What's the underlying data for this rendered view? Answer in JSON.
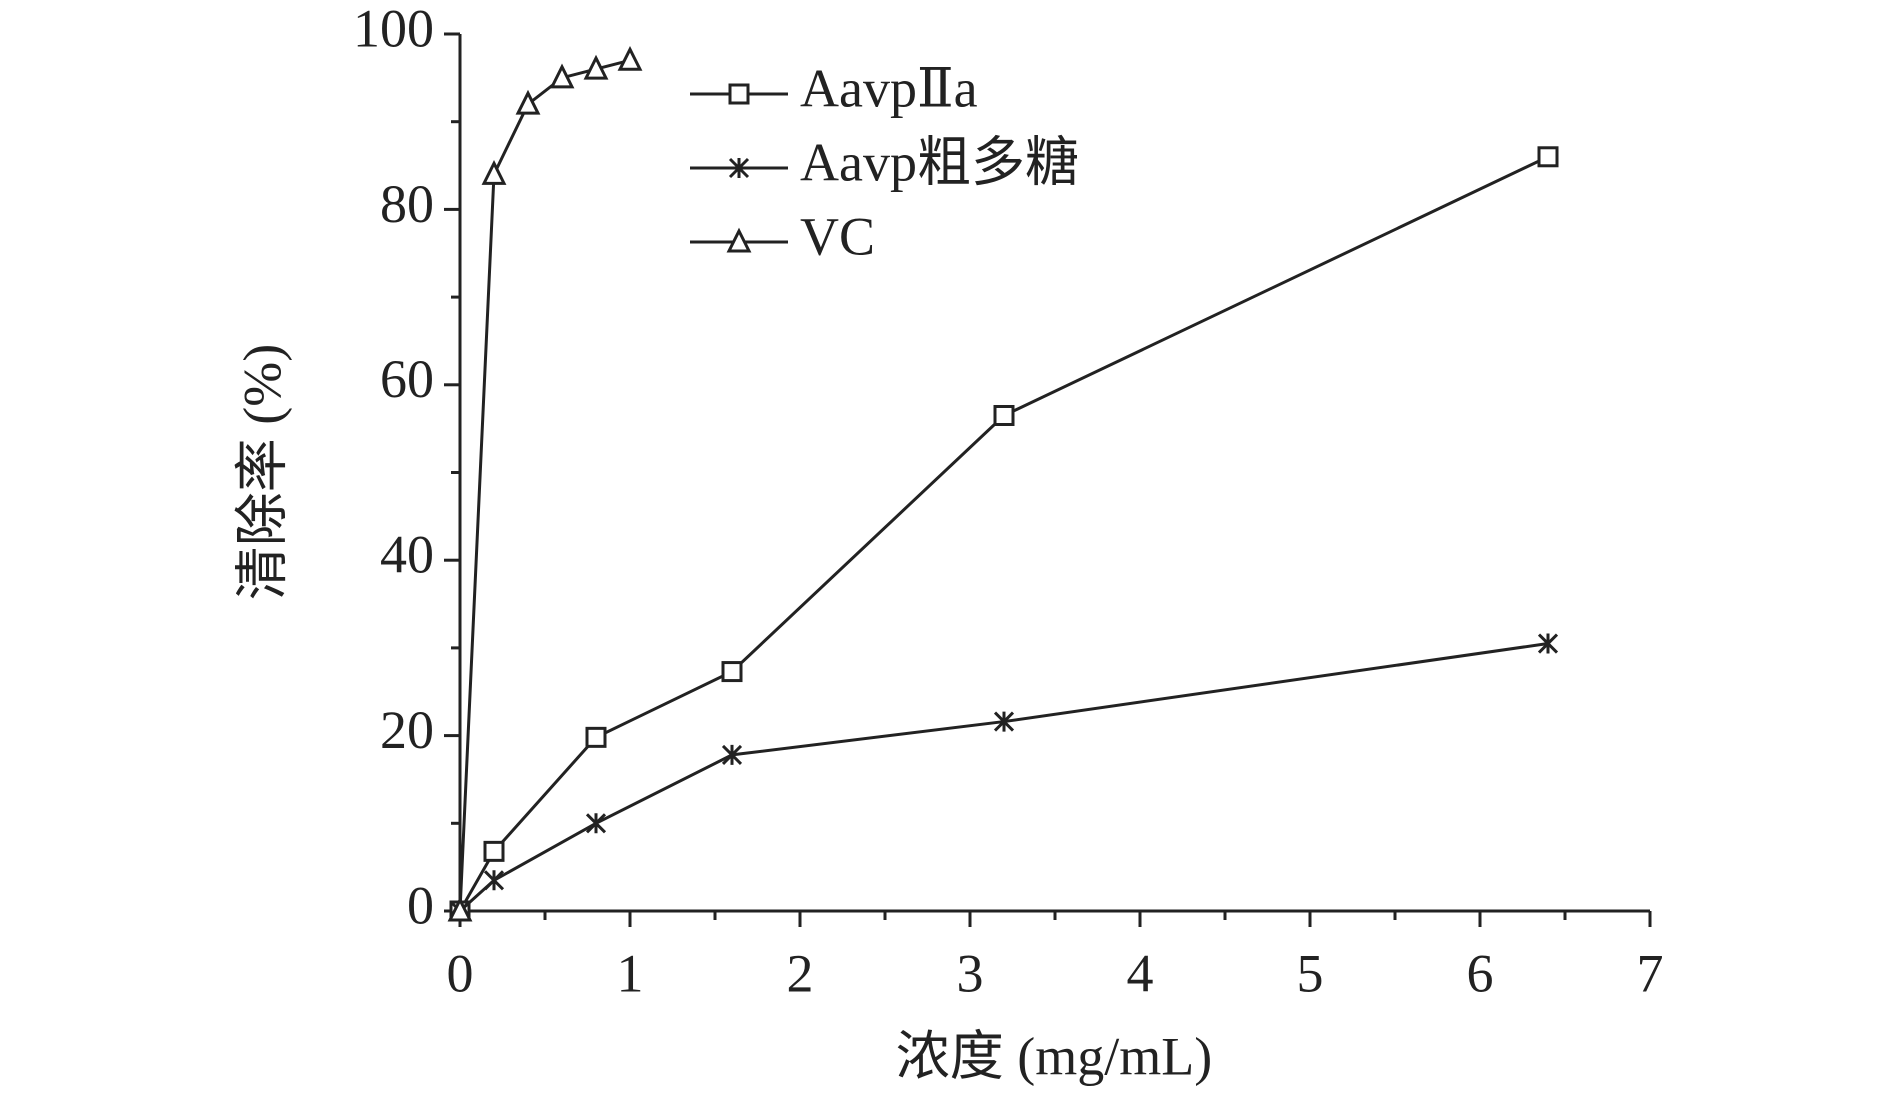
{
  "chart_data": {
    "type": "line",
    "xlabel": "浓度 (mg/mL)",
    "ylabel": "清除率 (%)",
    "xlim": [
      0,
      7
    ],
    "xticks": [
      0,
      1,
      2,
      3,
      4,
      5,
      6,
      7
    ],
    "xminorticks": [
      0.5,
      1.5,
      2.5,
      3.5,
      4.5,
      5.5,
      6.5
    ],
    "ylim": [
      0,
      100
    ],
    "yticks": [
      0,
      20,
      40,
      60,
      80,
      100
    ],
    "yminorticks": [
      10,
      30,
      50,
      70,
      90
    ],
    "legend": "upper-center",
    "series": [
      {
        "name": "AavpⅡa",
        "color": "#222222",
        "marker": "square",
        "x": [
          0,
          0.2,
          0.8,
          1.6,
          3.2,
          6.4
        ],
        "values": [
          0,
          6.8,
          19.8,
          27.3,
          56.5,
          86
        ]
      },
      {
        "name": "Aavp粗多糖",
        "color": "#222222",
        "marker": "star",
        "x": [
          0,
          0.2,
          0.8,
          1.6,
          3.2,
          6.4
        ],
        "values": [
          0,
          3.5,
          10,
          17.8,
          21.6,
          30.5
        ]
      },
      {
        "name": "VC",
        "color": "#222222",
        "marker": "triangle",
        "x": [
          0,
          0.2,
          0.4,
          0.6,
          0.8,
          1.0
        ],
        "values": [
          0,
          84,
          92,
          95,
          96,
          97
        ]
      }
    ]
  }
}
